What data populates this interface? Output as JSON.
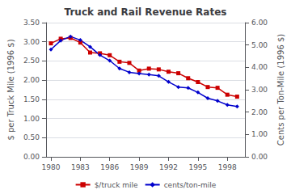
{
  "chart_data": {
    "type": "line",
    "title": "Truck and Rail Revenue Rates",
    "x": [
      1980,
      1981,
      1982,
      1983,
      1984,
      1985,
      1986,
      1987,
      1988,
      1989,
      1990,
      1991,
      1992,
      1993,
      1994,
      1995,
      1996,
      1997,
      1998,
      1999
    ],
    "series": [
      {
        "name": "$/truck mile",
        "color": "#cc0000",
        "marker": "square",
        "line_style": "solid",
        "values": [
          2.96,
          3.08,
          3.1,
          2.98,
          2.72,
          2.7,
          2.65,
          2.48,
          2.45,
          2.25,
          2.3,
          2.28,
          2.22,
          2.18,
          2.05,
          1.95,
          1.82,
          1.8,
          1.62,
          1.57
        ]
      },
      {
        "name": "cents/ton-mile",
        "color": "#0000cc",
        "marker": "diamond",
        "line_style": "solid",
        "axis": "y2",
        "values": [
          4.8,
          5.2,
          5.38,
          5.22,
          4.92,
          4.55,
          4.3,
          3.95,
          3.78,
          3.72,
          3.68,
          3.62,
          3.35,
          3.12,
          3.08,
          2.88,
          2.62,
          2.5,
          2.32,
          2.25
        ]
      }
    ],
    "ylabel": "$ per Truck Mile (1996 $)",
    "y2label": "Cents per Ton-Mile (1996 $)",
    "xlim": [
      1979.5,
      1999.8
    ],
    "xticks": [
      1980,
      1983,
      1986,
      1989,
      1992,
      1995,
      1998
    ],
    "ylim": [
      0.0,
      3.5
    ],
    "yticks": [
      {
        "value": 0.0,
        "label": "0.00"
      },
      {
        "value": 0.5,
        "label": "0.50"
      },
      {
        "value": 1.0,
        "label": "1.00"
      },
      {
        "value": 1.5,
        "label": "1.50"
      },
      {
        "value": 2.0,
        "label": "2.00"
      },
      {
        "value": 2.5,
        "label": "2.50"
      },
      {
        "value": 3.0,
        "label": "3.00"
      },
      {
        "value": 3.5,
        "label": "3.50"
      }
    ],
    "y2lim": [
      0.0,
      6.0
    ],
    "y2ticks": [
      {
        "value": 0.0,
        "label": "0.00"
      },
      {
        "value": 1.0,
        "label": "1.00"
      },
      {
        "value": 2.0,
        "label": "2.00"
      },
      {
        "value": 3.0,
        "label": "3.00"
      },
      {
        "value": 4.0,
        "label": "4.00"
      },
      {
        "value": 5.0,
        "label": "5.00"
      },
      {
        "value": 6.0,
        "label": "6.00"
      }
    ],
    "grid": true,
    "legend": "bottom"
  }
}
